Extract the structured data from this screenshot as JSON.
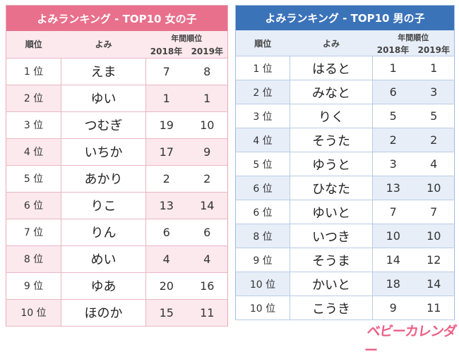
{
  "girls": {
    "title": "よみランキング - TOP10 女の子",
    "headers": {
      "rank": "順位",
      "yomi": "よみ",
      "annual": "年間順位",
      "y2018": "2018年",
      "y2019": "2019年"
    },
    "rows": [
      {
        "rank": "1 位",
        "yomi": "えま",
        "y2018": "7",
        "y2019": "8"
      },
      {
        "rank": "2 位",
        "yomi": "ゆい",
        "y2018": "1",
        "y2019": "1"
      },
      {
        "rank": "3 位",
        "yomi": "つむぎ",
        "y2018": "19",
        "y2019": "10"
      },
      {
        "rank": "4 位",
        "yomi": "いちか",
        "y2018": "17",
        "y2019": "9"
      },
      {
        "rank": "5 位",
        "yomi": "あかり",
        "y2018": "2",
        "y2019": "2"
      },
      {
        "rank": "6 位",
        "yomi": "りこ",
        "y2018": "13",
        "y2019": "14"
      },
      {
        "rank": "7 位",
        "yomi": "りん",
        "y2018": "6",
        "y2019": "6"
      },
      {
        "rank": "8 位",
        "yomi": "めい",
        "y2018": "4",
        "y2019": "4"
      },
      {
        "rank": "9 位",
        "yomi": "ゆあ",
        "y2018": "20",
        "y2019": "16"
      },
      {
        "rank": "10 位",
        "yomi": "ほのか",
        "y2018": "15",
        "y2019": "11"
      }
    ]
  },
  "boys": {
    "title": "よみランキング - TOP10 男の子",
    "headers": {
      "rank": "順位",
      "yomi": "よみ",
      "annual": "年間順位",
      "y2018": "2018年",
      "y2019": "2019年"
    },
    "rows": [
      {
        "rank": "1 位",
        "yomi": "はると",
        "y2018": "1",
        "y2019": "1"
      },
      {
        "rank": "2 位",
        "yomi": "みなと",
        "y2018": "6",
        "y2019": "3"
      },
      {
        "rank": "3 位",
        "yomi": "りく",
        "y2018": "5",
        "y2019": "5"
      },
      {
        "rank": "4 位",
        "yomi": "そうた",
        "y2018": "2",
        "y2019": "2"
      },
      {
        "rank": "5 位",
        "yomi": "ゆうと",
        "y2018": "3",
        "y2019": "4"
      },
      {
        "rank": "6 位",
        "yomi": "ひなた",
        "y2018": "13",
        "y2019": "10"
      },
      {
        "rank": "6 位",
        "yomi": "ゆいと",
        "y2018": "7",
        "y2019": "7"
      },
      {
        "rank": "8 位",
        "yomi": "いつき",
        "y2018": "10",
        "y2019": "10"
      },
      {
        "rank": "9 位",
        "yomi": "そうま",
        "y2018": "14",
        "y2019": "12"
      },
      {
        "rank": "10 位",
        "yomi": "かいと",
        "y2018": "18",
        "y2019": "14"
      },
      {
        "rank": "10 位",
        "yomi": "こうき",
        "y2018": "9",
        "y2019": "11"
      }
    ]
  },
  "logo": "ベビーカレンダー",
  "colors": {
    "girls_accent": "#e8708c",
    "girls_stripe": "#fbe9ee",
    "boys_accent": "#3b73b9",
    "boys_stripe": "#e7eef8",
    "logo": "#ec5f84"
  }
}
